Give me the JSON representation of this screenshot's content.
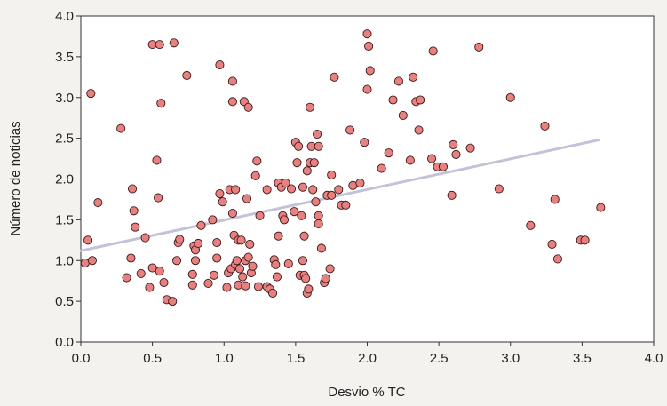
{
  "chart_data": {
    "type": "scatter",
    "title": "",
    "xlabel": "Desvio % TC",
    "ylabel": "Número de noticias",
    "xlim": [
      0.0,
      4.0
    ],
    "ylim": [
      0.0,
      4.0
    ],
    "xticks": [
      "0.0",
      "0.5",
      "1.0",
      "1.5",
      "2.0",
      "2.5",
      "3.0",
      "3.5",
      "4.0"
    ],
    "yticks": [
      "0.0",
      "0.5",
      "1.0",
      "1.5",
      "2.0",
      "2.5",
      "3.0",
      "3.5",
      "4.0"
    ],
    "grid": false,
    "legend": "none",
    "marker_color": "#e88080",
    "marker_edge_color": "#3b1818",
    "trend_color": "#c2c3d8",
    "trendline": {
      "x": [
        0.0,
        3.62
      ],
      "y": [
        1.12,
        2.48
      ]
    },
    "series": [
      {
        "points": [
          [
            0.03,
            0.97
          ],
          [
            0.05,
            1.25
          ],
          [
            0.07,
            3.05
          ],
          [
            0.08,
            1.0
          ],
          [
            0.12,
            1.71
          ],
          [
            0.28,
            2.62
          ],
          [
            0.32,
            0.79
          ],
          [
            0.35,
            1.03
          ],
          [
            0.36,
            1.88
          ],
          [
            0.37,
            1.61
          ],
          [
            0.38,
            1.41
          ],
          [
            0.42,
            0.84
          ],
          [
            0.45,
            1.28
          ],
          [
            0.48,
            0.67
          ],
          [
            0.5,
            0.91
          ],
          [
            0.5,
            3.65
          ],
          [
            0.53,
            2.23
          ],
          [
            0.54,
            1.77
          ],
          [
            0.55,
            3.65
          ],
          [
            0.55,
            0.87
          ],
          [
            0.56,
            2.93
          ],
          [
            0.58,
            0.73
          ],
          [
            0.6,
            0.52
          ],
          [
            0.64,
            0.5
          ],
          [
            0.65,
            3.67
          ],
          [
            0.67,
            1.0
          ],
          [
            0.68,
            1.22
          ],
          [
            0.69,
            1.26
          ],
          [
            0.74,
            3.27
          ],
          [
            0.78,
            0.83
          ],
          [
            0.78,
            0.7
          ],
          [
            0.79,
            1.18
          ],
          [
            0.8,
            1.13
          ],
          [
            0.8,
            1.0
          ],
          [
            0.82,
            1.21
          ],
          [
            0.84,
            1.43
          ],
          [
            0.89,
            0.72
          ],
          [
            0.92,
            1.5
          ],
          [
            0.93,
            0.82
          ],
          [
            0.95,
            1.22
          ],
          [
            0.95,
            1.03
          ],
          [
            0.97,
            1.82
          ],
          [
            0.97,
            3.4
          ],
          [
            0.99,
            1.72
          ],
          [
            1.02,
            0.67
          ],
          [
            1.03,
            0.85
          ],
          [
            1.04,
            1.87
          ],
          [
            1.05,
            0.9
          ],
          [
            1.06,
            3.2
          ],
          [
            1.06,
            2.95
          ],
          [
            1.06,
            1.58
          ],
          [
            1.07,
            1.31
          ],
          [
            1.08,
            1.87
          ],
          [
            1.08,
            0.95
          ],
          [
            1.09,
            1.0
          ],
          [
            1.1,
            1.25
          ],
          [
            1.1,
            0.7
          ],
          [
            1.11,
            0.9
          ],
          [
            1.12,
            1.25
          ],
          [
            1.13,
            0.8
          ],
          [
            1.14,
            2.95
          ],
          [
            1.15,
            0.69
          ],
          [
            1.15,
            1.0
          ],
          [
            1.16,
            1.76
          ],
          [
            1.17,
            1.04
          ],
          [
            1.17,
            2.88
          ],
          [
            1.18,
            1.2
          ],
          [
            1.19,
            0.85
          ],
          [
            1.2,
            0.93
          ],
          [
            1.22,
            2.04
          ],
          [
            1.23,
            2.22
          ],
          [
            1.24,
            0.68
          ],
          [
            1.25,
            1.55
          ],
          [
            1.3,
            0.68
          ],
          [
            1.3,
            1.87
          ],
          [
            1.32,
            0.65
          ],
          [
            1.34,
            0.6
          ],
          [
            1.35,
            1.01
          ],
          [
            1.36,
            0.95
          ],
          [
            1.37,
            0.8
          ],
          [
            1.38,
            1.3
          ],
          [
            1.38,
            1.95
          ],
          [
            1.4,
            1.9
          ],
          [
            1.41,
            1.55
          ],
          [
            1.42,
            1.5
          ],
          [
            1.43,
            1.95
          ],
          [
            1.45,
            0.96
          ],
          [
            1.47,
            1.88
          ],
          [
            1.49,
            1.6
          ],
          [
            1.5,
            2.45
          ],
          [
            1.51,
            2.2
          ],
          [
            1.52,
            2.4
          ],
          [
            1.53,
            0.82
          ],
          [
            1.54,
            1.55
          ],
          [
            1.55,
            1.9
          ],
          [
            1.55,
            1.0
          ],
          [
            1.56,
            1.3
          ],
          [
            1.56,
            0.82
          ],
          [
            1.57,
            0.78
          ],
          [
            1.58,
            2.1
          ],
          [
            1.58,
            0.6
          ],
          [
            1.59,
            0.65
          ],
          [
            1.6,
            2.88
          ],
          [
            1.6,
            2.2
          ],
          [
            1.61,
            2.4
          ],
          [
            1.62,
            1.87
          ],
          [
            1.63,
            2.2
          ],
          [
            1.64,
            1.72
          ],
          [
            1.65,
            2.55
          ],
          [
            1.66,
            1.45
          ],
          [
            1.66,
            1.55
          ],
          [
            1.66,
            2.4
          ],
          [
            1.68,
            1.15
          ],
          [
            1.7,
            0.73
          ],
          [
            1.71,
            0.78
          ],
          [
            1.72,
            1.8
          ],
          [
            1.74,
            0.9
          ],
          [
            1.75,
            1.8
          ],
          [
            1.75,
            2.05
          ],
          [
            1.77,
            3.25
          ],
          [
            1.8,
            1.87
          ],
          [
            1.82,
            1.68
          ],
          [
            1.85,
            1.68
          ],
          [
            1.88,
            2.6
          ],
          [
            1.9,
            1.92
          ],
          [
            1.95,
            1.95
          ],
          [
            1.98,
            2.45
          ],
          [
            2.0,
            3.78
          ],
          [
            2.0,
            3.1
          ],
          [
            2.01,
            3.63
          ],
          [
            2.02,
            3.33
          ],
          [
            2.1,
            2.13
          ],
          [
            2.15,
            2.32
          ],
          [
            2.18,
            2.97
          ],
          [
            2.22,
            3.2
          ],
          [
            2.25,
            2.78
          ],
          [
            2.3,
            2.23
          ],
          [
            2.32,
            3.25
          ],
          [
            2.34,
            2.95
          ],
          [
            2.36,
            2.6
          ],
          [
            2.37,
            2.97
          ],
          [
            2.45,
            2.25
          ],
          [
            2.46,
            3.57
          ],
          [
            2.49,
            2.15
          ],
          [
            2.53,
            2.15
          ],
          [
            2.59,
            1.8
          ],
          [
            2.6,
            2.42
          ],
          [
            2.62,
            2.3
          ],
          [
            2.72,
            2.38
          ],
          [
            2.78,
            3.62
          ],
          [
            2.92,
            1.88
          ],
          [
            3.0,
            3.0
          ],
          [
            3.14,
            1.43
          ],
          [
            3.24,
            2.65
          ],
          [
            3.29,
            1.2
          ],
          [
            3.31,
            1.75
          ],
          [
            3.33,
            1.02
          ],
          [
            3.49,
            1.25
          ],
          [
            3.52,
            1.25
          ],
          [
            3.63,
            1.65
          ]
        ]
      }
    ]
  }
}
